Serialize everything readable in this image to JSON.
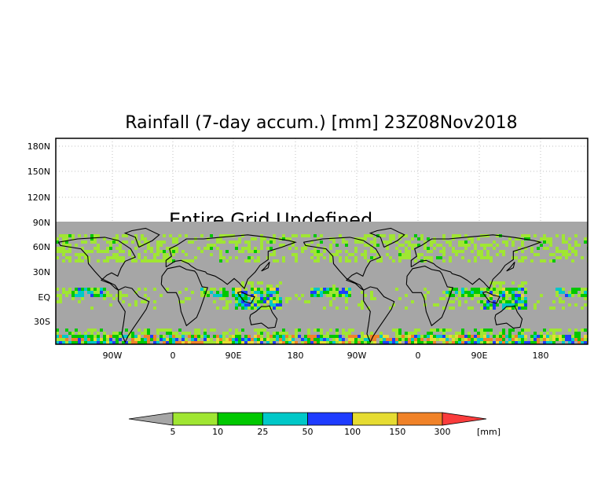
{
  "title": "Rainfall (7-day accum.) [mm] 23Z08Nov2018",
  "undefined_label": "Entire Grid Undefined",
  "lat_labels": [
    "180N",
    "150N",
    "120N",
    "90N",
    "60N",
    "30N",
    "EQ",
    "30S"
  ],
  "lon_labels": [
    "90W",
    "0",
    "90E",
    "180",
    "90W",
    "0",
    "90E",
    "180"
  ],
  "colorbar": {
    "levels": [
      "5",
      "10",
      "25",
      "50",
      "100",
      "150",
      "300"
    ],
    "unit": "[mm]",
    "below_color": "#a6a6a6",
    "bin_colors": [
      "#a0e632",
      "#00c800",
      "#00c8c8",
      "#1e3cff",
      "#e6dc32",
      "#f08228"
    ],
    "above_color": "#fa3c3c"
  },
  "colors": {
    "no_data": "#a6a6a6",
    "map_bg": "#a6a6a6",
    "frame": "#000000",
    "gridline": "#c0c0c0"
  }
}
